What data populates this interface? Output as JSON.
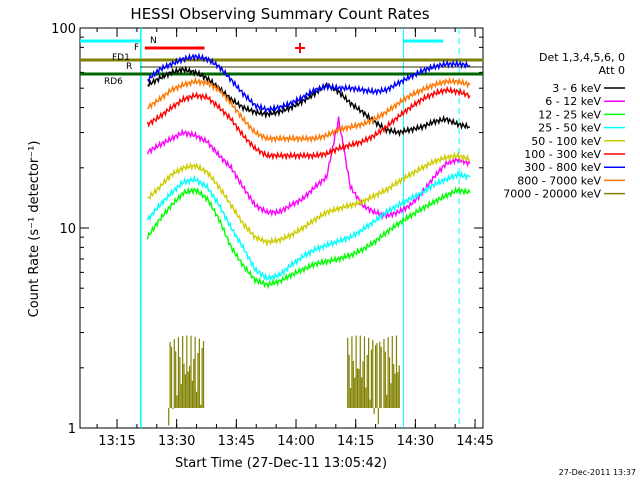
{
  "chart_data": {
    "type": "line",
    "title": "HESSI Observing Summary Count Rates",
    "xlabel": "Start Time (27-Dec-11 13:05:42)",
    "ylabel": "Count Rate (s⁻¹ detector⁻¹)",
    "yscale": "log",
    "ylim": [
      1,
      100
    ],
    "xlim": [
      "13:05:42",
      "14:47:00"
    ],
    "xticks": [
      "13:15",
      "13:30",
      "13:45",
      "14:00",
      "14:15",
      "14:30",
      "14:45"
    ],
    "yticks": [
      "1",
      "10",
      "100"
    ],
    "grid": false,
    "legend_placement": "right",
    "legend_title": "Det 1,3,4,5,6, Att 0",
    "timestamp": "27-Dec-2011 13:37",
    "flag_labels": {
      "N": "N",
      "F": "F",
      "FD1": "FD1",
      "R": "R",
      "RD6": "RD6"
    },
    "x_minutes": [
      11,
      14,
      17,
      20,
      23,
      26,
      29,
      32,
      35,
      38,
      41,
      44,
      47,
      50,
      53,
      56,
      59,
      62,
      65,
      68,
      71,
      74,
      77,
      80,
      83,
      86,
      89,
      92,
      95,
      98
    ],
    "series": [
      {
        "name": "3 - 6 keV",
        "color": "#000000",
        "values": [
          null,
          null,
          52,
          56,
          60,
          62,
          60,
          56,
          50,
          44,
          40,
          38,
          37,
          38,
          40,
          43,
          47,
          52,
          48,
          42,
          38,
          34,
          31,
          30,
          31,
          32,
          34,
          35,
          33,
          32
        ]
      },
      {
        "name": "6 - 12 keV",
        "color": "#ff00ff",
        "values": [
          null,
          null,
          24,
          26,
          28,
          30,
          29,
          27,
          23,
          20,
          16,
          13,
          12,
          12,
          13,
          14,
          16,
          18,
          35,
          16,
          13,
          12,
          11.5,
          12,
          13,
          15,
          18,
          21,
          22,
          21
        ]
      },
      {
        "name": "12 - 25 keV",
        "color": "#00ff00",
        "values": [
          null,
          null,
          9,
          11,
          13,
          15,
          15.5,
          14,
          11,
          8,
          6.5,
          5.5,
          5.2,
          5.4,
          5.8,
          6.2,
          6.6,
          6.8,
          7.0,
          7.3,
          7.8,
          8.5,
          9.5,
          10.5,
          11.5,
          12.5,
          13.5,
          14.5,
          15.5,
          15
        ]
      },
      {
        "name": "25 - 50 keV",
        "color": "#00ffff",
        "values": [
          null,
          null,
          11,
          13,
          15,
          17,
          17.5,
          16,
          13,
          10,
          8,
          6.2,
          5.6,
          5.8,
          6.5,
          7.2,
          7.8,
          8.2,
          8.6,
          9.0,
          9.8,
          10.8,
          12,
          13,
          14,
          15,
          16.5,
          17.5,
          18.5,
          18
        ]
      },
      {
        "name": "50 - 100 keV",
        "color": "#cccc00",
        "values": [
          null,
          null,
          14,
          16,
          18.5,
          20,
          20.5,
          19,
          16,
          13,
          10.5,
          9,
          8.5,
          8.7,
          9.2,
          10,
          11,
          12,
          12.5,
          13,
          13.5,
          14.5,
          15.5,
          17,
          18.5,
          20,
          21.5,
          22.5,
          23,
          22
        ]
      },
      {
        "name": "100 - 300 keV",
        "color": "#ff0000",
        "values": [
          null,
          null,
          33,
          36,
          40,
          44,
          46,
          45,
          40,
          35,
          29,
          25,
          23,
          23,
          23,
          23,
          23,
          23.5,
          25,
          26,
          27,
          29,
          32,
          36,
          40,
          44,
          47,
          49,
          48,
          46
        ]
      },
      {
        "name": "300 - 800 keV",
        "color": "#0000ff",
        "values": [
          null,
          null,
          55,
          62,
          66,
          70,
          72,
          70,
          64,
          55,
          47,
          41,
          39,
          40,
          42,
          45,
          49,
          51,
          50,
          50,
          49,
          48,
          49,
          53,
          57,
          61,
          64,
          66,
          66,
          65
        ]
      },
      {
        "name": "800 - 7000 keV",
        "color": "#ff7700",
        "values": [
          null,
          null,
          40,
          44,
          49,
          52,
          54,
          53,
          49,
          42,
          35,
          30,
          28,
          28,
          28,
          28,
          28,
          29,
          31,
          32,
          33,
          35,
          38,
          42,
          46,
          49,
          52,
          54,
          54,
          52
        ]
      },
      {
        "name": "7000 - 20000 keV",
        "color": "#808000",
        "values": [
          null,
          null,
          null,
          null,
          null,
          null,
          null,
          null,
          null,
          null,
          null,
          null,
          null,
          null,
          null,
          null,
          null,
          null,
          null,
          null,
          null,
          null,
          null,
          null,
          null,
          null,
          null,
          null,
          null,
          null
        ]
      }
    ]
  }
}
